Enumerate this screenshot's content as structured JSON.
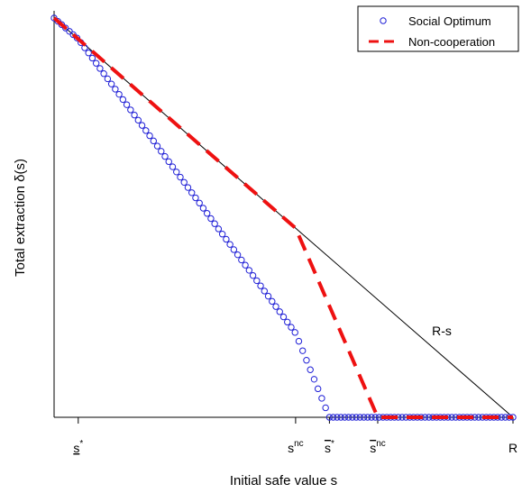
{
  "chart_data": {
    "type": "line",
    "xlabel": "Initial safe value s",
    "ylabel": "Total extraction  δ(s)",
    "x_ticks": [
      {
        "name": "s-lower-star",
        "value": 0.05,
        "main": "s",
        "sup": "*",
        "underline": true,
        "overline": false
      },
      {
        "name": "s-nc",
        "value": 0.5,
        "main": "s",
        "sup": "nc",
        "underline": false,
        "overline": false
      },
      {
        "name": "s-upper-star",
        "value": 0.57,
        "main": "s",
        "sup": "*",
        "underline": false,
        "overline": true
      },
      {
        "name": "s-upper-nc",
        "value": 0.67,
        "main": "s",
        "sup": "nc",
        "underline": false,
        "overline": true
      },
      {
        "name": "R",
        "value": 0.95,
        "main": "R",
        "sup": "",
        "underline": false,
        "overline": false
      }
    ],
    "xlim": [
      0,
      0.95
    ],
    "ylim": [
      0,
      0.95
    ],
    "reference_line": {
      "label": "R-s",
      "x": [
        0,
        0.95
      ],
      "y": [
        0.95,
        0
      ]
    },
    "series": [
      {
        "name": "Social Optimum",
        "style": "open-circles",
        "color": "#1f1fd6",
        "x": [
          0,
          0.05,
          0.5,
          0.57,
          0.95
        ],
        "y": [
          0.95,
          0.9,
          0.2,
          0,
          0
        ]
      },
      {
        "name": "Non-cooperation",
        "style": "dashed",
        "color": "#ee1111",
        "x": [
          0,
          0.05,
          0.5,
          0.67,
          0.95
        ],
        "y": [
          0.95,
          0.9,
          0.45,
          0,
          0
        ]
      }
    ],
    "legend_position": "top-right",
    "grid": false
  }
}
